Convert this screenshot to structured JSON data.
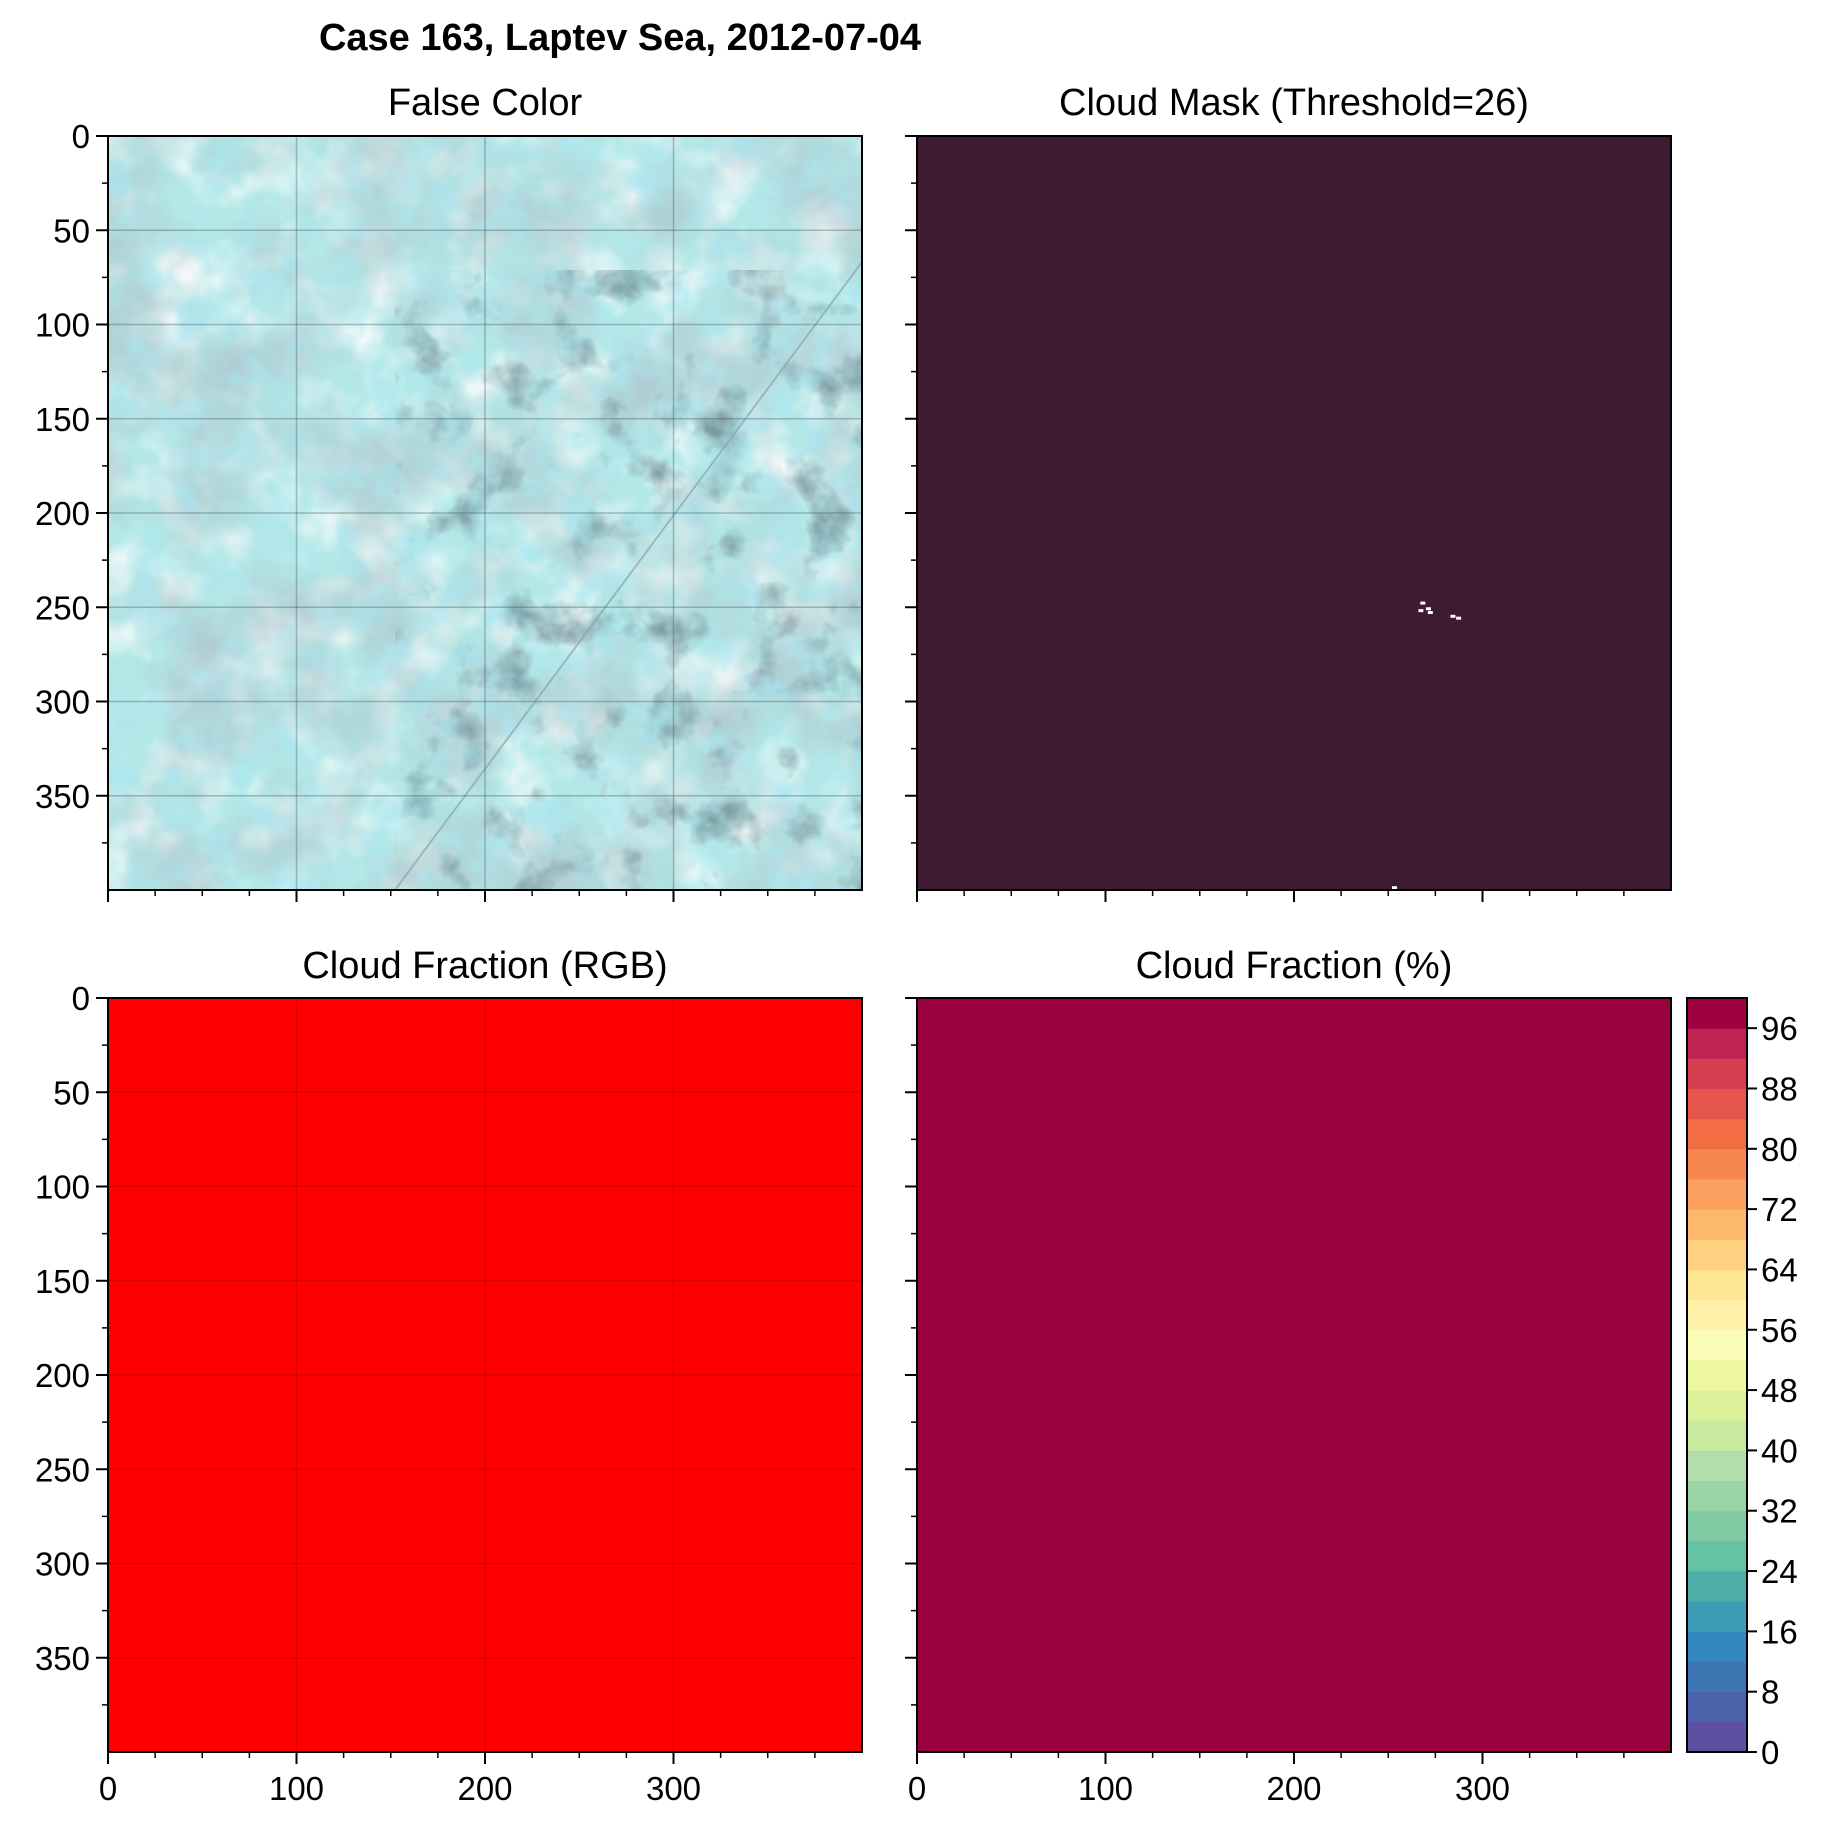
{
  "figure": {
    "title": "Case 163, Laptev Sea, 2012-07-04"
  },
  "colors": {
    "false_color_ice": "#b4e8e8",
    "false_color_shadow": "#7f9aa0",
    "false_color_open_water": "#3f7b86",
    "false_color_melt_pond": "#6fd0e0",
    "mask_cloud": "#3e1a33",
    "mask_clear": "#ffffff",
    "fraction_rgb": "#ff0000",
    "fraction_pct": "#9b003f"
  },
  "chart_data": [
    {
      "type": "image",
      "title": "False Color",
      "xlim": [
        0,
        400
      ],
      "ylim": [
        400,
        0
      ],
      "x_ticks": [
        0,
        100,
        200,
        300
      ],
      "y_ticks": [
        0,
        50,
        100,
        150,
        200,
        250,
        300,
        350
      ],
      "y_tick_labels": [
        "0",
        "50",
        "100",
        "150",
        "200",
        "250",
        "300",
        "350"
      ],
      "grid": true,
      "x_tick_labels_shown": false,
      "y_tick_labels_shown": true
    },
    {
      "type": "heatmap",
      "title": "Cloud Mask (Threshold=26)",
      "threshold": 26,
      "xlim": [
        0,
        400
      ],
      "ylim": [
        400,
        0
      ],
      "x_ticks": [
        0,
        100,
        200,
        300
      ],
      "y_ticks": [
        0,
        50,
        100,
        150,
        200,
        250,
        300,
        350
      ],
      "grid": false,
      "x_tick_labels_shown": false,
      "y_tick_labels_shown": false,
      "clear_patches": [
        [
          267,
          247
        ],
        [
          270,
          250
        ],
        [
          266,
          251
        ],
        [
          271,
          252
        ],
        [
          283,
          254
        ],
        [
          286,
          255
        ],
        [
          252,
          398
        ]
      ]
    },
    {
      "type": "heatmap",
      "title": "Cloud Fraction (RGB)",
      "xlim": [
        0,
        400
      ],
      "ylim": [
        400,
        0
      ],
      "x_ticks": [
        0,
        100,
        200,
        300
      ],
      "x_tick_labels": [
        "0",
        "100",
        "200",
        "300"
      ],
      "y_ticks": [
        0,
        50,
        100,
        150,
        200,
        250,
        300,
        350
      ],
      "y_tick_labels": [
        "0",
        "50",
        "100",
        "150",
        "200",
        "250",
        "300",
        "350"
      ],
      "grid": true,
      "x_tick_labels_shown": true,
      "y_tick_labels_shown": true
    },
    {
      "type": "heatmap",
      "title": "Cloud Fraction (%)",
      "value": 100,
      "xlim": [
        0,
        400
      ],
      "ylim": [
        400,
        0
      ],
      "x_ticks": [
        0,
        100,
        200,
        300
      ],
      "x_tick_labels": [
        "0",
        "100",
        "200",
        "300"
      ],
      "y_ticks": [
        0,
        50,
        100,
        150,
        200,
        250,
        300,
        350
      ],
      "grid": false,
      "x_tick_labels_shown": true,
      "y_tick_labels_shown": false,
      "colorbar": {
        "range": [
          0,
          100
        ],
        "ticks": [
          0,
          8,
          16,
          24,
          32,
          40,
          48,
          56,
          64,
          72,
          80,
          88,
          96
        ],
        "tick_labels": [
          "0",
          "8",
          "16",
          "24",
          "32",
          "40",
          "48",
          "56",
          "64",
          "72",
          "80",
          "88",
          "96"
        ],
        "levels": 25,
        "colors": [
          "#5e4fa2",
          "#4a62a9",
          "#3d75b3",
          "#3288bd",
          "#3d9cb6",
          "#4eaea7",
          "#66c2a5",
          "#80cba4",
          "#99d5a4",
          "#b1deaa",
          "#c8e9a0",
          "#dcf09a",
          "#eef8a0",
          "#fbfcb8",
          "#fff2a8",
          "#fee593",
          "#fdd180",
          "#fdb96a",
          "#fca05f",
          "#f88650",
          "#f26d43",
          "#e4564b",
          "#d53e4f",
          "#bd2452",
          "#9e0142"
        ]
      }
    }
  ]
}
